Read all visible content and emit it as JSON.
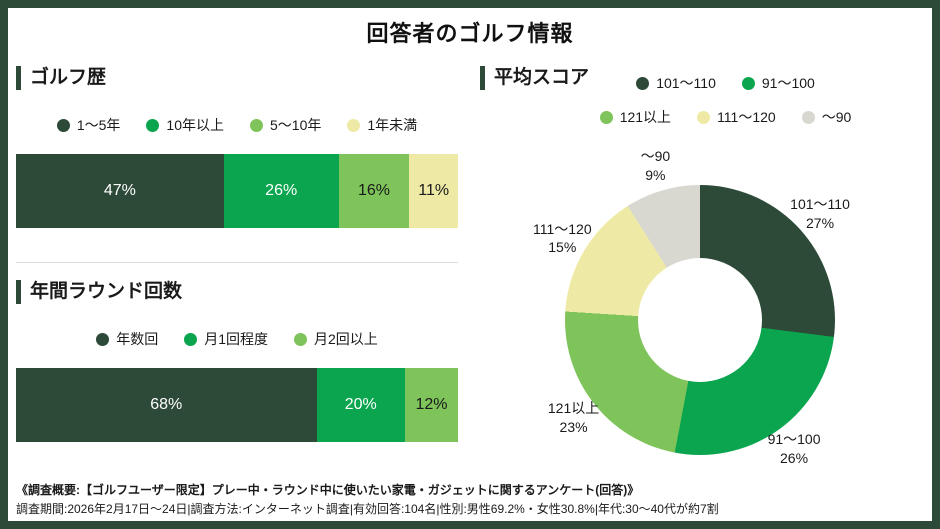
{
  "title": "回答者のゴルフ情報",
  "colors": {
    "border": "#2d4a38",
    "dark_green": "#2d4a38",
    "green": "#0aa54e",
    "light_green": "#7ec45a",
    "pale_yellow": "#eeeaa6",
    "gray": "#d9d8d0",
    "divider": "#dcdcdc"
  },
  "sections": {
    "golf_history": {
      "title": "ゴルフ歴"
    },
    "annual_rounds": {
      "title": "年間ラウンド回数"
    },
    "average_score": {
      "title": "平均スコア"
    }
  },
  "chart_data": [
    {
      "id": "golf_history",
      "type": "bar",
      "subtype": "stacked-horizontal",
      "title": "ゴルフ歴",
      "categories": [
        "1〜5年",
        "10年以上",
        "5〜10年",
        "1年未満"
      ],
      "values": [
        47,
        26,
        16,
        11
      ],
      "unit": "%",
      "colors": [
        "#2d4a38",
        "#0aa54e",
        "#7ec45a",
        "#eeeaa6"
      ],
      "text_colors": [
        "#ffffff",
        "#ffffff",
        "#1a1a1a",
        "#1a1a1a"
      ],
      "legend_position": "top-center"
    },
    {
      "id": "annual_rounds",
      "type": "bar",
      "subtype": "stacked-horizontal",
      "title": "年間ラウンド回数",
      "categories": [
        "年数回",
        "月1回程度",
        "月2回以上"
      ],
      "values": [
        68,
        20,
        12
      ],
      "unit": "%",
      "colors": [
        "#2d4a38",
        "#0aa54e",
        "#7ec45a"
      ],
      "text_colors": [
        "#ffffff",
        "#ffffff",
        "#1a1a1a"
      ],
      "legend_position": "top-center"
    },
    {
      "id": "average_score",
      "type": "pie",
      "subtype": "donut",
      "title": "平均スコア",
      "categories": [
        "101〜110",
        "91〜100",
        "121以上",
        "111〜120",
        "〜90"
      ],
      "values": [
        27,
        26,
        23,
        15,
        9
      ],
      "unit": "%",
      "colors": [
        "#2d4a38",
        "#0aa54e",
        "#7ec45a",
        "#eeeaa6",
        "#d9d8d0"
      ],
      "legend_rows": [
        [
          0,
          1
        ],
        [
          2,
          3,
          4
        ]
      ],
      "start_angle": "top",
      "direction": "clockwise",
      "legend_position": "top-right"
    }
  ],
  "footer": {
    "line1": "《調査概要:【ゴルフユーザー限定】プレー中・ラウンド中に使いたい家電・ガジェットに関するアンケート(回答)》",
    "line2": "調査期間:2026年2月17日〜24日|調査方法:インターネット調査|有効回答:104名|性別:男性69.2%・女性30.8%|年代:30〜40代が約7割"
  }
}
